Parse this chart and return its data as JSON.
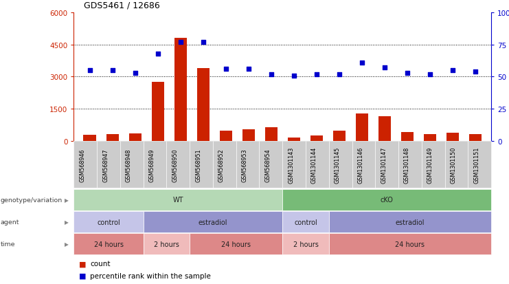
{
  "title": "GDS5461 / 12686",
  "samples": [
    "GSM568946",
    "GSM568947",
    "GSM568948",
    "GSM568949",
    "GSM568950",
    "GSM568951",
    "GSM568952",
    "GSM568953",
    "GSM568954",
    "GSM1301143",
    "GSM1301144",
    "GSM1301145",
    "GSM1301146",
    "GSM1301147",
    "GSM1301148",
    "GSM1301149",
    "GSM1301150",
    "GSM1301151"
  ],
  "counts": [
    280,
    320,
    350,
    2750,
    4800,
    3400,
    500,
    550,
    650,
    180,
    270,
    480,
    1300,
    1150,
    430,
    330,
    380,
    330
  ],
  "percentile_ranks": [
    55,
    55,
    53,
    68,
    77,
    77,
    56,
    56,
    52,
    51,
    52,
    52,
    61,
    57,
    53,
    52,
    55,
    54
  ],
  "ylim_left": [
    0,
    6000
  ],
  "ylim_right": [
    0,
    100
  ],
  "yticks_left": [
    0,
    1500,
    3000,
    4500,
    6000
  ],
  "yticks_right": [
    0,
    25,
    50,
    75,
    100
  ],
  "ytick_labels_left": [
    "0",
    "1500",
    "3000",
    "4500",
    "6000"
  ],
  "ytick_labels_right": [
    "0",
    "25",
    "50",
    "75",
    "100%"
  ],
  "bar_color": "#cc2200",
  "dot_color": "#0000cc",
  "background_color": "#ffffff",
  "plot_bg_color": "#ffffff",
  "genotype_row": {
    "label": "genotype/variation",
    "groups": [
      {
        "text": "WT",
        "start": 0,
        "end": 9,
        "color": "#b5d9b5"
      },
      {
        "text": "cKO",
        "start": 9,
        "end": 18,
        "color": "#77bb77"
      }
    ]
  },
  "agent_row": {
    "label": "agent",
    "groups": [
      {
        "text": "control",
        "start": 0,
        "end": 3,
        "color": "#c5c5e8"
      },
      {
        "text": "estradiol",
        "start": 3,
        "end": 9,
        "color": "#9494cc"
      },
      {
        "text": "control",
        "start": 9,
        "end": 11,
        "color": "#c5c5e8"
      },
      {
        "text": "estradiol",
        "start": 11,
        "end": 18,
        "color": "#9494cc"
      }
    ]
  },
  "time_row": {
    "label": "time",
    "groups": [
      {
        "text": "24 hours",
        "start": 0,
        "end": 3,
        "color": "#dd8888"
      },
      {
        "text": "2 hours",
        "start": 3,
        "end": 5,
        "color": "#f0bbbb"
      },
      {
        "text": "24 hours",
        "start": 5,
        "end": 9,
        "color": "#dd8888"
      },
      {
        "text": "2 hours",
        "start": 9,
        "end": 11,
        "color": "#f0bbbb"
      },
      {
        "text": "24 hours",
        "start": 11,
        "end": 18,
        "color": "#dd8888"
      }
    ]
  },
  "sample_bg_color": "#cccccc",
  "legend_count_color": "#cc2200",
  "legend_dot_color": "#0000cc",
  "legend_count_label": "count",
  "legend_dot_label": "percentile rank within the sample",
  "arrow_color": "#888888"
}
